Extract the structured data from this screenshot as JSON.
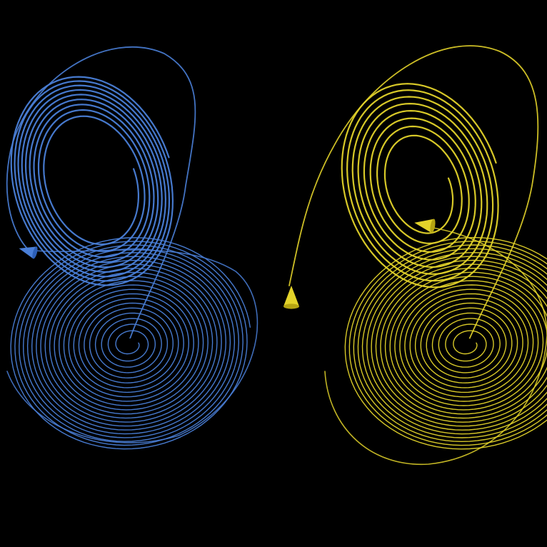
{
  "background_color": "#000000",
  "trajectories": [
    {
      "key": "blue",
      "color": "#4a7fd8",
      "color_dark": "#2c5fb8",
      "upper_loop_turns": 9,
      "lower_spiral_turns": 22,
      "marker_icon": "cone-icon"
    },
    {
      "key": "yellow",
      "color": "#e3d32a",
      "color_dark": "#b5a412",
      "upper_loop_turns": 8,
      "lower_spiral_turns": 22,
      "marker_icon": "cone-icon"
    }
  ]
}
